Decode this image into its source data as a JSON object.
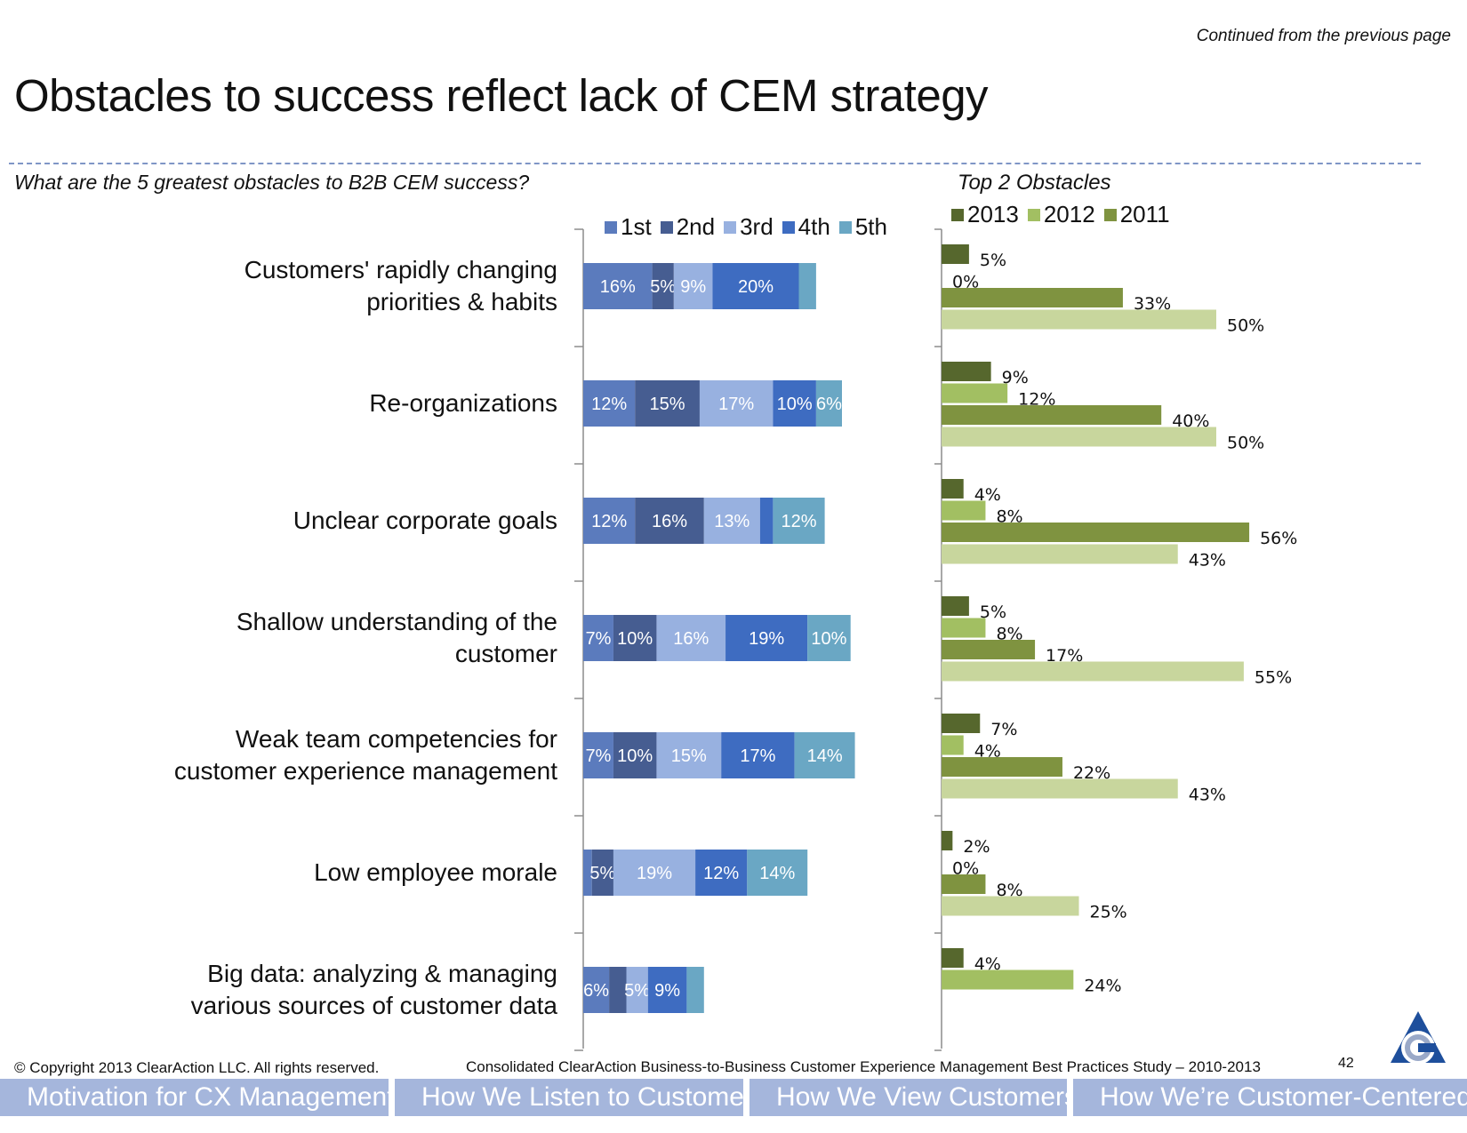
{
  "header": {
    "continued": "Continued from the previous page",
    "title": "Obstacles to success reflect lack of CEM strategy",
    "question": "What are the 5 greatest obstacles to B2B CEM success?",
    "right_title": "Top 2 Obstacles"
  },
  "chart_data": [
    {
      "type": "bar",
      "orientation": "horizontal",
      "stacked": true,
      "categories": [
        "Customers' rapidly changing priorities & habits",
        "Re-organizations",
        "Unclear corporate goals",
        "Shallow understanding of the customer",
        "Weak team competencies for customer experience management",
        "Low employee morale",
        "Big data: analyzing & managing various sources of customer data"
      ],
      "category_lines": [
        [
          "Customers' rapidly changing",
          "priorities & habits"
        ],
        [
          "Re-organizations"
        ],
        [
          "Unclear corporate goals"
        ],
        [
          "Shallow understanding of the",
          "customer"
        ],
        [
          "Weak team competencies for",
          "customer experience management"
        ],
        [
          "Low employee morale"
        ],
        [
          "Big data: analyzing & managing",
          "various sources of customer data"
        ]
      ],
      "series": [
        {
          "name": "1st",
          "color": "#5b7bbd",
          "values": [
            16,
            12,
            12,
            7,
            7,
            2,
            6
          ]
        },
        {
          "name": "2nd",
          "color": "#465d91",
          "values": [
            5,
            15,
            16,
            10,
            10,
            5,
            4
          ]
        },
        {
          "name": "3rd",
          "color": "#98b1e0",
          "values": [
            9,
            17,
            13,
            16,
            15,
            19,
            5
          ]
        },
        {
          "name": "4th",
          "color": "#3e6cc1",
          "values": [
            20,
            10,
            3,
            19,
            17,
            12,
            9
          ]
        },
        {
          "name": "5th",
          "color": "#6aa7c4",
          "values": [
            4,
            6,
            12,
            10,
            14,
            14,
            4
          ]
        }
      ],
      "labels": [
        [
          "16%",
          "5%",
          "9%",
          "20%",
          ""
        ],
        [
          "12%",
          "15%",
          "17%",
          "10%",
          "6%"
        ],
        [
          "12%",
          "16%",
          "13%",
          "",
          "12%"
        ],
        [
          "7%",
          "10%",
          "16%",
          "19%",
          "10%"
        ],
        [
          "7%",
          "10%",
          "15%",
          "17%",
          "14%"
        ],
        [
          "",
          "5%",
          "19%",
          "12%",
          "14%"
        ],
        [
          "6%",
          "",
          "5%",
          "9%",
          ""
        ]
      ],
      "legend": "top"
    },
    {
      "type": "bar",
      "orientation": "horizontal",
      "title": "Top 2 Obstacles",
      "categories": [
        "Customers' rapidly changing priorities & habits",
        "Re-organizations",
        "Unclear corporate goals",
        "Shallow understanding of the customer",
        "Weak team competencies for customer experience management",
        "Low employee morale",
        "Big data: analyzing & managing various sources of customer data"
      ],
      "legend_items": [
        {
          "name": "2013",
          "color": "#56672d"
        },
        {
          "name": "2012",
          "color": "#a2bf62"
        },
        {
          "name": "2011",
          "color": "#7f9340"
        }
      ],
      "rows": [
        [
          {
            "value": 5,
            "label": "5%",
            "color": "#56672d"
          },
          {
            "value": 0,
            "label": "0%",
            "color": "#a2bf62"
          },
          {
            "value": 33,
            "label": "33%",
            "color": "#7f9340"
          },
          {
            "value": 50,
            "label": "50%",
            "color": "#c8d69d"
          }
        ],
        [
          {
            "value": 9,
            "label": "9%",
            "color": "#56672d"
          },
          {
            "value": 12,
            "label": "12%",
            "color": "#a2bf62"
          },
          {
            "value": 40,
            "label": "40%",
            "color": "#7f9340"
          },
          {
            "value": 50,
            "label": "50%",
            "color": "#c8d69d"
          }
        ],
        [
          {
            "value": 4,
            "label": "4%",
            "color": "#56672d"
          },
          {
            "value": 8,
            "label": "8%",
            "color": "#a2bf62"
          },
          {
            "value": 56,
            "label": "56%",
            "color": "#7f9340"
          },
          {
            "value": 43,
            "label": "43%",
            "color": "#c8d69d"
          }
        ],
        [
          {
            "value": 5,
            "label": "5%",
            "color": "#56672d"
          },
          {
            "value": 8,
            "label": "8%",
            "color": "#a2bf62"
          },
          {
            "value": 17,
            "label": "17%",
            "color": "#7f9340"
          },
          {
            "value": 55,
            "label": "55%",
            "color": "#c8d69d"
          }
        ],
        [
          {
            "value": 7,
            "label": "7%",
            "color": "#56672d"
          },
          {
            "value": 4,
            "label": "4%",
            "color": "#a2bf62"
          },
          {
            "value": 22,
            "label": "22%",
            "color": "#7f9340"
          },
          {
            "value": 43,
            "label": "43%",
            "color": "#c8d69d"
          }
        ],
        [
          {
            "value": 2,
            "label": "2%",
            "color": "#56672d"
          },
          {
            "value": 0,
            "label": "0%",
            "color": "#a2bf62"
          },
          {
            "value": 8,
            "label": "8%",
            "color": "#7f9340"
          },
          {
            "value": 25,
            "label": "25%",
            "color": "#c8d69d"
          }
        ],
        [
          {
            "value": 4,
            "label": "4%",
            "color": "#56672d"
          },
          {
            "value": 24,
            "label": "24%",
            "color": "#a2bf62"
          }
        ]
      ],
      "legend": "top"
    }
  ],
  "footer": {
    "copyright": "© Copyright 2013 ClearAction LLC. All rights reserved.",
    "source": "Consolidated ClearAction Business-to-Business Customer Experience Management Best Practices Study – 2010-2013",
    "page_number": "42",
    "logo_icon": "clearaction-logo-icon"
  },
  "nav": {
    "tabs": [
      {
        "label": "Motivation for CX Management"
      },
      {
        "label": "How We Listen to Customers"
      },
      {
        "label": "How We View Customers"
      },
      {
        "label": "How We’re Customer-Centered"
      }
    ]
  }
}
